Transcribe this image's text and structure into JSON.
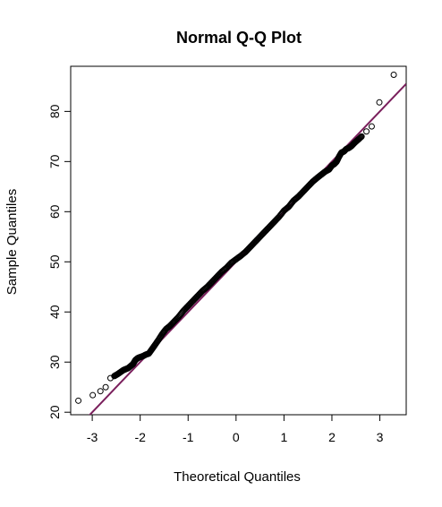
{
  "chart_data": {
    "type": "scatter",
    "title": "Normal Q-Q Plot",
    "xlabel": "Theoretical Quantiles",
    "ylabel": "Sample Quantiles",
    "xlim": [
      -3.45,
      3.55
    ],
    "ylim": [
      19.5,
      89.0
    ],
    "x_ticks": [
      -3,
      -2,
      -1,
      0,
      1,
      2,
      3
    ],
    "y_ticks": [
      20,
      30,
      40,
      50,
      60,
      70,
      80
    ],
    "grid": false,
    "legend": "none",
    "point_color": "#000000",
    "line_color": "#7a1f5c",
    "reference_line": {
      "intercept": 50.0,
      "slope": 10.0
    },
    "series": [
      {
        "x": [
          -3.29,
          -2.99,
          -2.83,
          -2.72,
          -2.62,
          -2.54,
          -2.47,
          -2.41,
          -2.35,
          -2.3,
          -2.25,
          -2.2,
          -2.15,
          -2.1,
          -2.05,
          -2.0,
          -1.94,
          -1.88,
          -1.82,
          -1.76,
          -1.7,
          -1.62,
          -1.54,
          -1.46,
          -1.38,
          -1.3,
          -1.2,
          -1.1,
          -1.0,
          -0.9,
          -0.8,
          -0.7,
          -0.6,
          -0.5,
          -0.4,
          -0.3,
          -0.2,
          -0.1,
          0.0,
          0.1,
          0.2,
          0.3,
          0.4,
          0.5,
          0.6,
          0.7,
          0.8,
          0.9,
          1.0,
          1.1,
          1.2,
          1.3,
          1.4,
          1.5,
          1.6,
          1.7,
          1.78,
          1.86,
          1.94,
          2.0,
          2.05,
          2.1,
          2.15,
          2.2,
          2.25,
          2.3,
          2.35,
          2.41,
          2.47,
          2.54,
          2.62,
          2.72,
          2.83,
          2.99,
          3.29
        ],
        "y": [
          22.3,
          23.4,
          24.2,
          25.0,
          26.8,
          27.2,
          27.6,
          28.0,
          28.4,
          28.6,
          28.8,
          29.2,
          29.6,
          30.4,
          30.8,
          31.0,
          31.2,
          31.5,
          31.7,
          32.5,
          33.3,
          34.4,
          35.6,
          36.6,
          37.2,
          38.0,
          39.0,
          40.2,
          41.2,
          42.2,
          43.2,
          44.2,
          45.0,
          46.0,
          47.0,
          48.0,
          48.8,
          49.8,
          50.5,
          51.2,
          52.0,
          53.0,
          54.0,
          55.0,
          56.0,
          57.0,
          58.0,
          59.0,
          60.2,
          61.0,
          62.2,
          63.0,
          64.0,
          65.0,
          66.0,
          66.8,
          67.4,
          68.0,
          68.4,
          69.2,
          69.5,
          70.0,
          71.0,
          71.8,
          72.0,
          72.5,
          72.7,
          73.1,
          73.7,
          74.3,
          75.0,
          76.0,
          77.0,
          81.8,
          87.3
        ]
      }
    ]
  }
}
